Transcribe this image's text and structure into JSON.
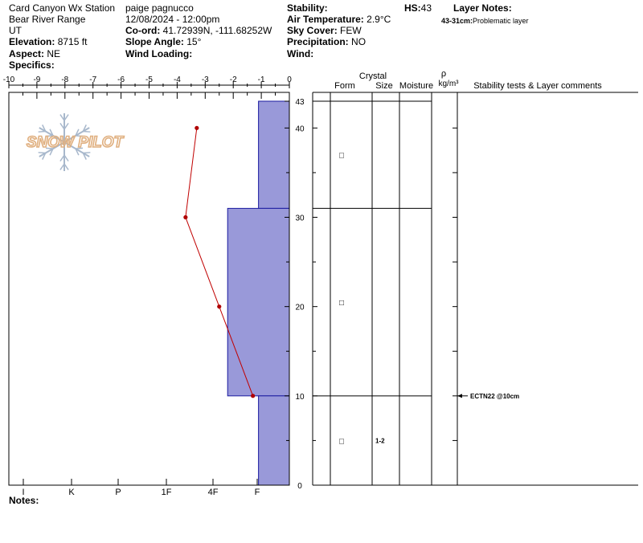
{
  "header": {
    "location": "Card Canyon Wx Station",
    "range": "Bear River Range",
    "state": "UT",
    "elevation_label": "Elevation:",
    "elevation": "8715 ft",
    "aspect_label": "Aspect:",
    "aspect": "NE",
    "specifics_label": "Specifics:",
    "observer": "paige pagnucco",
    "datetime": "12/08/2024 - 12:00pm",
    "coord_label": "Co-ord:",
    "coord": "41.72939N, -111.68252W",
    "slope_label": "Slope Angle:",
    "slope": "15°",
    "wind_loading_label": "Wind Loading:",
    "stability_label": "Stability:",
    "air_temp_label": "Air Temperature:",
    "air_temp": "2.9°C",
    "sky_label": "Sky Cover:",
    "sky": "FEW",
    "precip_label": "Precipitation:",
    "precip": "NO",
    "wind_label": "Wind:",
    "hs_label": "HS:",
    "hs": "43",
    "layer_notes_label": "Layer Notes:",
    "layer_note_range": "43-31cm:",
    "layer_note_text": "Problematic layer",
    "notes_label": "Notes:"
  },
  "logo_text": "SNOW PILOT",
  "table_headers": {
    "crystal": "Crystal",
    "form": "Form",
    "size": "Size",
    "moisture": "Moisture",
    "rho": "ρ",
    "density_unit": "kg/m³",
    "stability": "Stability tests & Layer comments"
  },
  "chart_data": {
    "type": "snow-profile",
    "temperature_axis": {
      "ticks": [
        -10,
        -9,
        -8,
        -7,
        -6,
        -5,
        -4,
        -3,
        -2,
        -1,
        0
      ],
      "range": [
        -10,
        0
      ]
    },
    "depth_axis": {
      "ticks": [
        0,
        10,
        20,
        30,
        40,
        43
      ],
      "range": [
        0,
        43
      ]
    },
    "hardness_axis": {
      "labels": [
        "I",
        "K",
        "P",
        "1F",
        "4F",
        "F"
      ]
    },
    "hardness_layers": [
      {
        "bottom": 31,
        "top": 43,
        "hand_temp_equiv": -1.1
      },
      {
        "bottom": 10,
        "top": 31,
        "hand_temp_equiv": -2.2
      },
      {
        "bottom": 0,
        "top": 10,
        "hand_temp_equiv": -1.1
      }
    ],
    "temperature_profile": [
      {
        "depth": 40,
        "temp": -3.3
      },
      {
        "depth": 30,
        "temp": -3.7
      },
      {
        "depth": 20,
        "temp": -2.5
      },
      {
        "depth": 10,
        "temp": -1.3
      }
    ],
    "layers": [
      {
        "top": 43,
        "bottom": 31,
        "form_symbol": "□",
        "size": ""
      },
      {
        "top": 31,
        "bottom": 10,
        "form_symbol": "□",
        "size": ""
      },
      {
        "top": 10,
        "bottom": 0,
        "form_symbol": "□",
        "size": "1-2"
      }
    ],
    "stability_tests": [
      {
        "depth": 10,
        "text": "ECTN22 @10cm"
      }
    ],
    "colors": {
      "hardness_fill": "#9999d9",
      "hardness_stroke": "#1a1aa0",
      "temp_line": "#c00000",
      "temp_point": "#b00000",
      "logo": "#e0b080",
      "flake": "#a8b8cc"
    }
  }
}
